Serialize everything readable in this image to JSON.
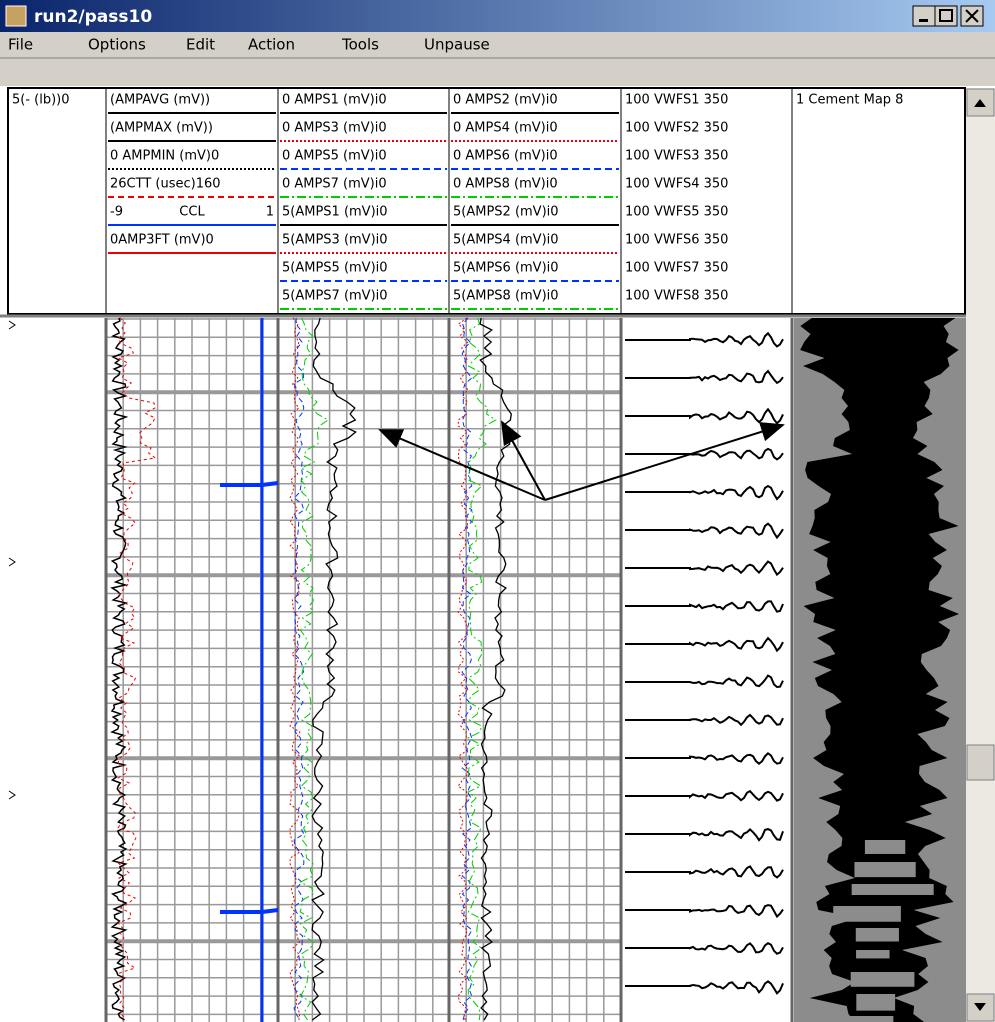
{
  "window": {
    "title": "run2/pass10"
  },
  "menu": [
    "File",
    "Options",
    "Edit",
    "Action",
    "Tools",
    "Unpause"
  ],
  "header": {
    "columns": [
      [
        {
          "text": "5(- (lb))0"
        }
      ],
      [
        {
          "text": "(AMPAVG (mV))",
          "color": "#000",
          "dash": ""
        },
        {
          "text": "(AMPMAX (mV))",
          "color": "#000",
          "dash": ""
        },
        {
          "text": "0 AMPMIN (mV)0",
          "color": "#000",
          "dash": "2 2"
        },
        {
          "text": "26CTT (usec)160",
          "color": "#e00",
          "dash": "6 4"
        },
        {
          "left": "-9",
          "center": "CCL",
          "right": "1",
          "color": "#0033ff",
          "dash": ""
        },
        {
          "text": "0AMP3FT (mV)0",
          "color": "#e00",
          "dash": ""
        }
      ],
      [
        {
          "text": "0 AMPS1 (mV)i0",
          "color": "#000",
          "dash": ""
        },
        {
          "text": "0 AMPS3 (mV)i0",
          "color": "#e00",
          "dash": "2 2"
        },
        {
          "text": "0 AMPS5 (mV)i0",
          "color": "#0033ff",
          "dash": "7 4"
        },
        {
          "text": "0 AMPS7 (mV)i0",
          "color": "#00cc00",
          "dash": "9 3 2 3"
        },
        {
          "text": "5(AMPS1 (mV)i0",
          "color": "#000",
          "dash": ""
        },
        {
          "text": "5(AMPS3 (mV)i0",
          "color": "#e00",
          "dash": "2 2"
        },
        {
          "text": "5(AMPS5 (mV)i0",
          "color": "#0033ff",
          "dash": "7 4"
        },
        {
          "text": "5(AMPS7 (mV)i0",
          "color": "#00cc00",
          "dash": "9 3 2 3"
        }
      ],
      [
        {
          "text": "0 AMPS2 (mV)i0",
          "color": "#000",
          "dash": ""
        },
        {
          "text": "0 AMPS4 (mV)i0",
          "color": "#e00",
          "dash": "2 2"
        },
        {
          "text": "0 AMPS6 (mV)i0",
          "color": "#0033ff",
          "dash": "7 4"
        },
        {
          "text": "0 AMPS8 (mV)i0",
          "color": "#00cc00",
          "dash": "9 3 2 3"
        },
        {
          "text": "5(AMPS2 (mV)i0",
          "color": "#000",
          "dash": ""
        },
        {
          "text": "5(AMPS4 (mV)i0",
          "color": "#e00",
          "dash": "2 2"
        },
        {
          "text": "5(AMPS6 (mV)i0",
          "color": "#0033ff",
          "dash": "7 4"
        },
        {
          "text": "5(AMPS8 (mV)i0",
          "color": "#00cc00",
          "dash": "9 3 2 3"
        }
      ],
      [
        {
          "text": "100 VWFS1 350"
        },
        {
          "text": "100 VWFS2 350"
        },
        {
          "text": "100 VWFS3 350"
        },
        {
          "text": "100 VWFS4 350"
        },
        {
          "text": "100 VWFS5 350"
        },
        {
          "text": "100 VWFS6 350"
        },
        {
          "text": "100 VWFS7 350"
        },
        {
          "text": "100 VWFS8 350"
        }
      ],
      [
        {
          "text": "1 Cement Map 8"
        }
      ]
    ]
  }
}
